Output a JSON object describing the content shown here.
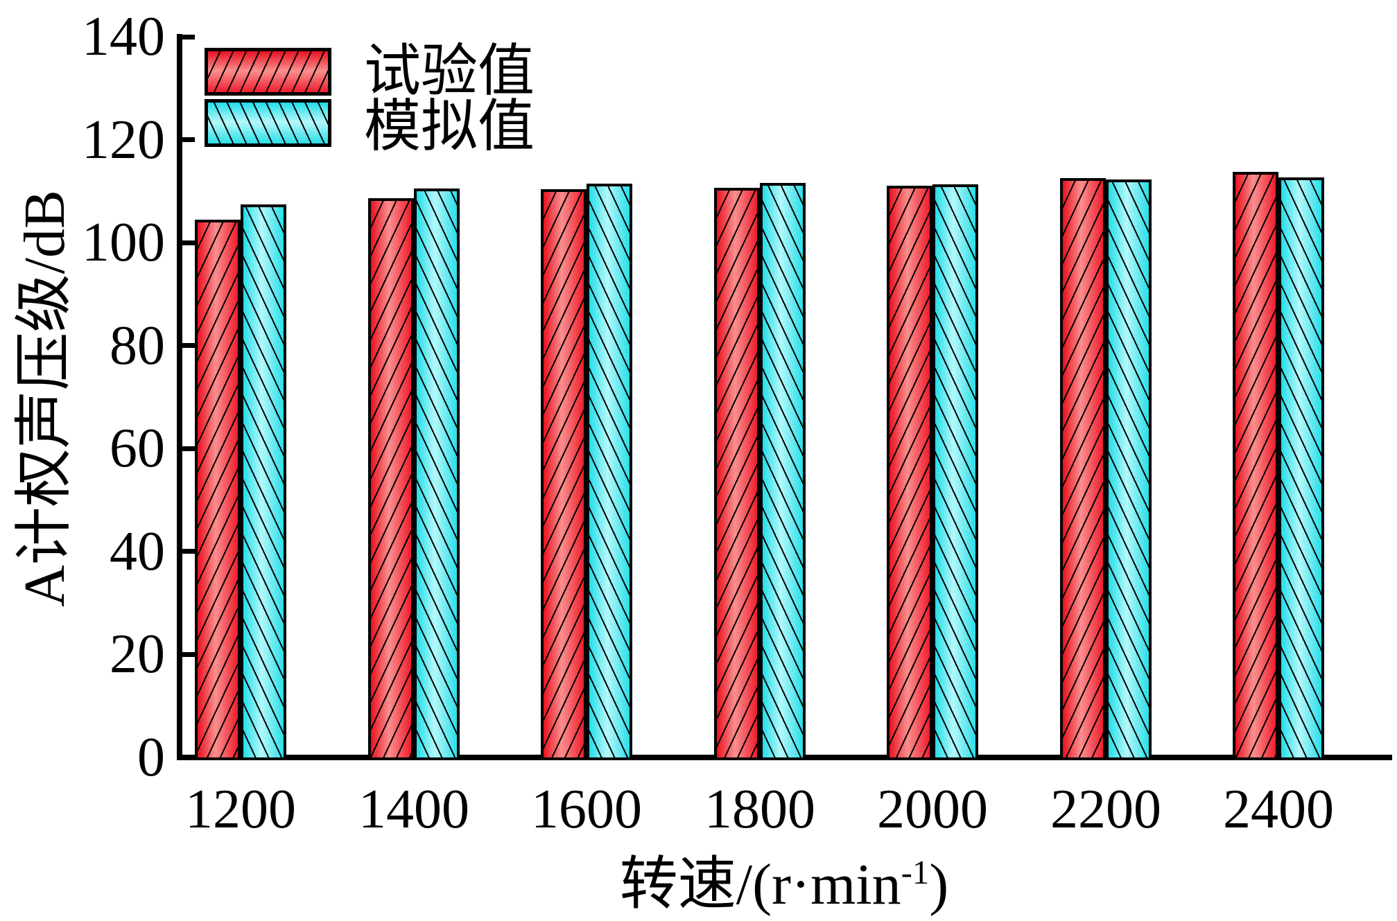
{
  "chart_data": {
    "type": "bar",
    "title": "",
    "categories": [
      "1200",
      "1400",
      "1600",
      "1800",
      "2000",
      "2200",
      "2400"
    ],
    "series": [
      {
        "name": "试验值",
        "values": [
          104.5,
          108.6,
          110.4,
          110.6,
          111.0,
          112.6,
          113.7
        ],
        "fill_edge": "#e8121f",
        "fill_center": "#fa8f8f",
        "hatch": "/",
        "outline": "#000000"
      },
      {
        "name": "模拟值",
        "values": [
          107.4,
          110.5,
          111.5,
          111.6,
          111.3,
          112.3,
          112.7
        ],
        "fill_edge": "#22dde9",
        "fill_center": "#b4f8fa",
        "hatch": "\\",
        "outline": "#000000"
      }
    ],
    "xlabel": "转速/(r·min⁻¹)",
    "ylabel": "A计权声压级/dB",
    "ylim": [
      0,
      140
    ],
    "ytick_interval": 20,
    "yticks": [
      "0",
      "20",
      "40",
      "60",
      "80",
      "100",
      "120",
      "140"
    ],
    "grid": false,
    "legend_position": "top-left",
    "axis_color": "#000000",
    "background": "#ffffff"
  },
  "x_axis_label_parts": {
    "pre": "转速/(r·min",
    "sup": "-1",
    "post": ")"
  }
}
